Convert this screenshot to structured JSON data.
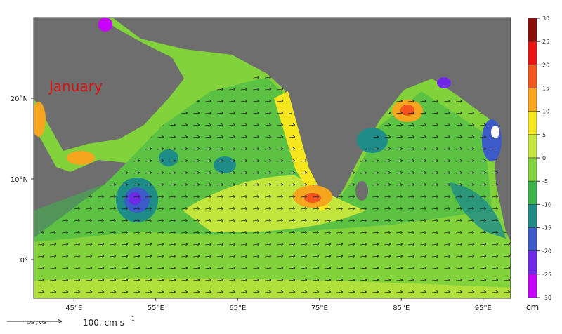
{
  "title": "January",
  "map": {
    "lat_ticks": [
      {
        "value": 20,
        "label": "20°N"
      },
      {
        "value": 10,
        "label": "10°N"
      },
      {
        "value": 0,
        "label": "0°"
      }
    ],
    "lon_ticks": [
      {
        "value": 45,
        "label": "45°E"
      },
      {
        "value": 55,
        "label": "55°E"
      },
      {
        "value": 65,
        "label": "65°E"
      },
      {
        "value": 75,
        "label": "75°E"
      },
      {
        "value": 85,
        "label": "85°E"
      },
      {
        "value": 95,
        "label": "95°E"
      }
    ],
    "colorbar": {
      "unit": "cm",
      "ticks": [
        30,
        25,
        20,
        15,
        10,
        5,
        0,
        -5,
        -10,
        -15,
        -20,
        -25,
        -30
      ],
      "colors": [
        "#8b0a0a",
        "#e81414",
        "#f5551e",
        "#f5a51e",
        "#f5e61e",
        "#c3e63c",
        "#82d23c",
        "#3cb44b",
        "#1e8c87",
        "#3c5ac8",
        "#6e28e6",
        "#c800ff"
      ]
    },
    "vector_legend": {
      "label": "UG , VG",
      "scale": "100. cm s",
      "exponent": "-1"
    }
  }
}
